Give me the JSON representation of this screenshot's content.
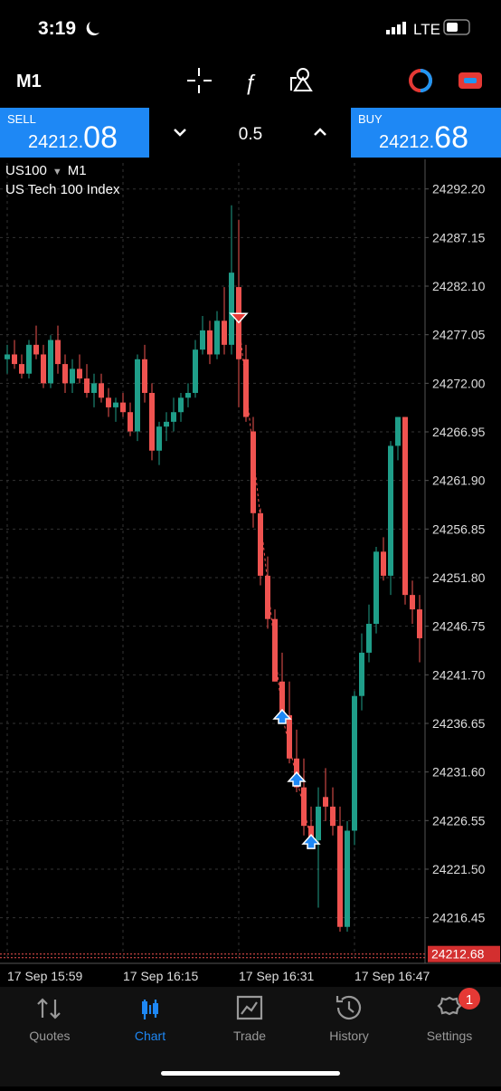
{
  "status": {
    "time": "3:19",
    "network": "LTE"
  },
  "toolbar": {
    "timeframe": "M1"
  },
  "trade_panel": {
    "sell_label": "SELL",
    "sell_price_main": "24212.",
    "sell_price_frac": "08",
    "volume": "0.5",
    "buy_label": "BUY",
    "buy_price_main": "24212.",
    "buy_price_frac": "68"
  },
  "chart_data": {
    "type": "candlestick",
    "symbol": "US100",
    "timeframe": "M1",
    "description": "US Tech 100 Index",
    "up_color": "#1f9e89",
    "down_color": "#ef5350",
    "grid": true,
    "x": [
      "17 Sep 15:59",
      null,
      null,
      null,
      null,
      null,
      null,
      null,
      null,
      null,
      null,
      null,
      null,
      null,
      null,
      null,
      "17 Sep 16:15",
      null,
      null,
      null,
      null,
      null,
      null,
      null,
      null,
      null,
      null,
      null,
      null,
      null,
      null,
      null,
      "17 Sep 16:31",
      null,
      null,
      null,
      null,
      null,
      null,
      null,
      null,
      null,
      null,
      null,
      null,
      null,
      null,
      null,
      "17 Sep 16:47",
      null,
      null,
      null,
      null,
      null,
      null,
      null,
      null,
      null
    ],
    "open": [
      24274.5,
      24275,
      24274,
      24273,
      24276,
      24275,
      24272,
      24276.5,
      24274,
      24272,
      24273.5,
      24272.5,
      24271,
      24272,
      24270.5,
      24269.5,
      24270,
      24269,
      24267,
      24274.5,
      24271,
      24265,
      24267.5,
      24268,
      24269,
      24270.5,
      24271,
      24275.5,
      24277.5,
      24275,
      24278.5,
      24276,
      24282,
      24274.5,
      24267,
      24258.5,
      24252,
      24247.5,
      24241,
      24237.5,
      24233,
      24230,
      24226,
      24224.5,
      24229,
      24228,
      24226,
      24215.5,
      24225.5,
      24239.5,
      24244,
      24247,
      24254.5,
      24252,
      24265.5,
      24268.5,
      24250,
      24248.5
    ],
    "high": [
      24276,
      24276.5,
      24275,
      24276.5,
      24278,
      24276,
      24277,
      24278,
      24275,
      24274.5,
      24275,
      24274,
      24273,
      24273,
      24271.5,
      24270.5,
      24271,
      24270,
      24275,
      24276,
      24272,
      24268,
      24269,
      24270.5,
      24271,
      24272,
      24276.5,
      24279,
      24278.5,
      24279.5,
      24282,
      24290.5,
      24289,
      24276,
      24268.5,
      24259,
      24254,
      24248.5,
      24244,
      24241,
      24236,
      24233,
      24228,
      24230,
      24232,
      24230,
      24228,
      24226.5,
      24240,
      24246,
      24249,
      24255,
      24256,
      24266,
      24268.5,
      24268.5,
      24251.5,
      24250
    ],
    "low": [
      24273,
      24273.5,
      24272.5,
      24272.5,
      24274.5,
      24271.5,
      24271.5,
      24273,
      24271,
      24271,
      24272,
      24270.5,
      24269.5,
      24270,
      24268.5,
      24268,
      24268.5,
      24266.5,
      24266,
      24270,
      24264,
      24263.5,
      24266,
      24267,
      24268,
      24269.5,
      24270.5,
      24275,
      24274,
      24274.5,
      24275,
      24275,
      24269.5,
      24268,
      24257,
      24251,
      24246.5,
      24241,
      24237,
      24232.5,
      24229.5,
      24225,
      24224,
      24217.5,
      24226.5,
      24225,
      24215,
      24215,
      24224,
      24238,
      24243,
      24246,
      24251.5,
      24250,
      24264,
      24249,
      24247,
      24243
    ],
    "close": [
      24275,
      24274,
      24273,
      24276,
      24275,
      24272,
      24276.5,
      24274,
      24272,
      24273.5,
      24272.5,
      24271,
      24272,
      24270.5,
      24269.5,
      24270,
      24269,
      24267,
      24274.5,
      24271,
      24265,
      24267.5,
      24268,
      24269,
      24270.5,
      24271,
      24275.5,
      24277.5,
      24275,
      24278.5,
      24276,
      24283.5,
      24274.5,
      24268.5,
      24258.5,
      24252,
      24247.5,
      24241,
      24237.5,
      24233,
      24230,
      24226,
      24224.5,
      24228,
      24228,
      24226,
      24215.5,
      24225.5,
      24239.5,
      24244,
      24247,
      24254.5,
      24252,
      24265.5,
      24268.5,
      24250,
      24248.5,
      24245.5
    ],
    "trades": [
      {
        "index": 32,
        "side": "sell",
        "price": 24278.5
      },
      {
        "index": 38,
        "side": "buy",
        "price": 24237.5
      },
      {
        "index": 40,
        "side": "buy",
        "price": 24231
      },
      {
        "index": 42,
        "side": "buy",
        "price": 24224.5
      }
    ],
    "current_price": {
      "value": 24212.68,
      "label": "24212.68"
    },
    "ylim": [
      24211.9,
      24294.9
    ],
    "yticks": [
      {
        "value": 24292.2,
        "label": "24292.20"
      },
      24287.15,
      {
        "value": 24282.1,
        "label": "24282.10"
      },
      24277.05,
      {
        "value": 24272,
        "label": "24272.00"
      },
      24266.95,
      {
        "value": 24261.9,
        "label": "24261.90"
      },
      24256.85,
      {
        "value": 24251.8,
        "label": "24251.80"
      },
      24246.75,
      {
        "value": 24241.7,
        "label": "24241.70"
      },
      24236.65,
      {
        "value": 24231.6,
        "label": "24231.60"
      },
      24226.55,
      {
        "value": 24221.5,
        "label": "24221.50"
      },
      24216.45
    ]
  },
  "nav": {
    "items": [
      "Quotes",
      "Chart",
      "Trade",
      "History",
      "Settings"
    ],
    "settings_badge": "1"
  }
}
